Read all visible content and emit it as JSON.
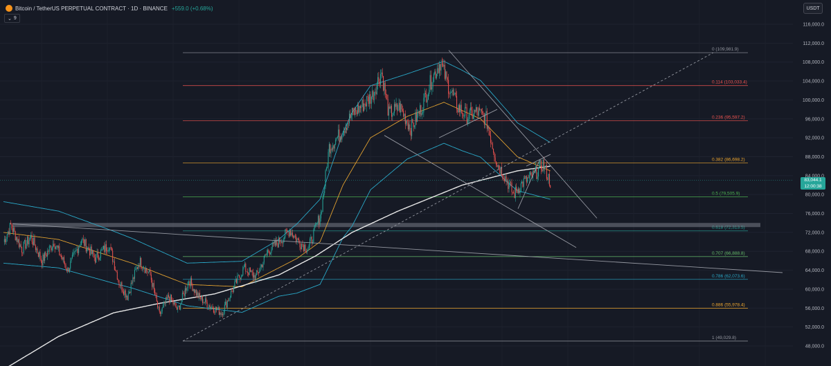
{
  "header": {
    "symbol": "Bitcoin / TetherUS PERPETUAL CONTRACT · 1D · BINANCE",
    "change": "+559.0 (+0.68%)",
    "indicator_count": "9",
    "currency_button": "USDT"
  },
  "last_price": {
    "price": "83,044.1",
    "countdown": "12:00:38",
    "value": 83044.1
  },
  "colors": {
    "background": "#161a25",
    "up": "#26a69a",
    "down": "#ef5350",
    "bollinger": "#2aa9c9",
    "ema": "#e0a030",
    "sma": "#e8e8e8",
    "trendline": "#9598a1"
  },
  "chart_data": {
    "type": "candlestick",
    "y_scale": {
      "min": 45000,
      "max": 118000
    },
    "y_axis_ticks": [
      "116,000.0",
      "112,000.0",
      "108,000.0",
      "104,000.0",
      "100,000.0",
      "96,000.0",
      "92,000.0",
      "88,000.0",
      "84,000.0",
      "80,000.0",
      "76,000.0",
      "72,000.0",
      "68,000.0",
      "64,000.0",
      "60,000.0",
      "56,000.0",
      "52,000.0",
      "48,000.0"
    ],
    "y_axis_values": [
      116000,
      112000,
      108000,
      104000,
      100000,
      96000,
      92000,
      88000,
      84000,
      80000,
      76000,
      72000,
      68000,
      64000,
      60000,
      56000,
      52000,
      48000
    ],
    "fibonacci": [
      {
        "ratio": "0",
        "value": 109981.9,
        "label": "0 (109,981.9)",
        "color": "#9598a1"
      },
      {
        "ratio": "0.114",
        "value": 103033.4,
        "label": "0.114 (103,033.4)",
        "color": "#ef5350"
      },
      {
        "ratio": "0.236",
        "value": 95597.2,
        "label": "0.236 (95,597.2)",
        "color": "#ef5350"
      },
      {
        "ratio": "0.382",
        "value": 86698.2,
        "label": "0.382 (86,698.2)",
        "color": "#f0a830"
      },
      {
        "ratio": "0.5",
        "value": 79505.9,
        "label": "0.5 (79,505.9)",
        "color": "#4caf50"
      },
      {
        "ratio": "0.618",
        "value": 72313.5,
        "label": "0.618 (72,313.5)",
        "color": "#26a69a"
      },
      {
        "ratio": "0.707",
        "value": 66888.8,
        "label": "0.707 (66,888.8)",
        "color": "#66bb6a"
      },
      {
        "ratio": "0.786",
        "value": 62073.6,
        "label": "0.786 (62,073.6)",
        "color": "#2aa9c9"
      },
      {
        "ratio": "0.886",
        "value": 55978.4,
        "label": "0.886 (55,978.4)",
        "color": "#f0a830"
      },
      {
        "ratio": "1",
        "value": 49029.8,
        "label": "1 (49,029.8)",
        "color": "#9598a1"
      }
    ],
    "ohlc_anchors": [
      [
        0,
        70000
      ],
      [
        8,
        73500
      ],
      [
        20,
        68500
      ],
      [
        30,
        71000
      ],
      [
        42,
        66000
      ],
      [
        55,
        70000
      ],
      [
        70,
        64000
      ],
      [
        85,
        70500
      ],
      [
        100,
        66500
      ],
      [
        115,
        69500
      ],
      [
        126,
        61500
      ],
      [
        135,
        58500
      ],
      [
        148,
        66000
      ],
      [
        160,
        63000
      ],
      [
        170,
        54500
      ],
      [
        180,
        58500
      ],
      [
        190,
        55500
      ],
      [
        202,
        62000
      ],
      [
        212,
        58500
      ],
      [
        225,
        56500
      ],
      [
        238,
        55000
      ],
      [
        250,
        60000
      ],
      [
        262,
        64500
      ],
      [
        275,
        62500
      ],
      [
        288,
        68000
      ],
      [
        300,
        70000
      ],
      [
        312,
        72500
      ],
      [
        322,
        70000
      ],
      [
        332,
        68500
      ],
      [
        346,
        76000
      ],
      [
        355,
        90000
      ],
      [
        368,
        93000
      ],
      [
        380,
        97000
      ],
      [
        392,
        99000
      ],
      [
        402,
        101000
      ],
      [
        412,
        106000
      ],
      [
        420,
        97000
      ],
      [
        432,
        98500
      ],
      [
        444,
        94000
      ],
      [
        456,
        98500
      ],
      [
        466,
        104000
      ],
      [
        476,
        108000
      ],
      [
        484,
        103500
      ],
      [
        495,
        98500
      ],
      [
        506,
        96500
      ],
      [
        516,
        97500
      ],
      [
        526,
        96000
      ],
      [
        538,
        86500
      ],
      [
        546,
        84000
      ],
      [
        556,
        80000
      ],
      [
        566,
        82500
      ],
      [
        578,
        84000
      ],
      [
        588,
        86500
      ],
      [
        596,
        82500
      ]
    ],
    "sma_anchors": [
      [
        0,
        43000
      ],
      [
        60,
        50000
      ],
      [
        120,
        55000
      ],
      [
        170,
        57000
      ],
      [
        230,
        59000
      ],
      [
        300,
        63000
      ],
      [
        340,
        67000
      ],
      [
        380,
        72000
      ],
      [
        430,
        76500
      ],
      [
        500,
        82000
      ],
      [
        560,
        85000
      ],
      [
        596,
        86000
      ]
    ],
    "ema_anchors": [
      [
        0,
        72000
      ],
      [
        60,
        70500
      ],
      [
        140,
        65500
      ],
      [
        200,
        61000
      ],
      [
        260,
        60500
      ],
      [
        320,
        66500
      ],
      [
        345,
        70000
      ],
      [
        370,
        82000
      ],
      [
        400,
        92000
      ],
      [
        440,
        96500
      ],
      [
        480,
        99500
      ],
      [
        520,
        96000
      ],
      [
        560,
        88000
      ],
      [
        596,
        85000
      ]
    ],
    "band_anchors": [
      [
        0,
        6500
      ],
      [
        120,
        5500
      ],
      [
        200,
        4500
      ],
      [
        300,
        6000
      ],
      [
        345,
        9000
      ],
      [
        380,
        12000
      ],
      [
        440,
        9000
      ],
      [
        500,
        8500
      ],
      [
        550,
        7500
      ],
      [
        596,
        6000
      ]
    ],
    "drawings": [
      {
        "name": "ascending-dashed-trendline",
        "dashed": true,
        "from": [
          264,
          49029.8
        ],
        "to": [
          1030,
          109981.9
        ]
      },
      {
        "name": "long-descending-trendline",
        "dashed": false,
        "from": [
          18,
          73800
        ],
        "to": [
          1130,
          63500
        ]
      },
      {
        "name": "wedge-upper-trendline",
        "dashed": false,
        "from": [
          648,
          110500
        ],
        "to": [
          862,
          75000
        ]
      },
      {
        "name": "wedge-lower-trendline",
        "dashed": false,
        "from": [
          555,
          92500
        ],
        "to": [
          832,
          68800
        ]
      },
      {
        "name": "mini-wedge-line-a",
        "dashed": false,
        "from": [
          634,
          92000
        ],
        "to": [
          718,
          98000
        ]
      },
      {
        "name": "mini-wedge-line-b",
        "dashed": false,
        "from": [
          748,
          77000
        ],
        "to": [
          780,
          87500
        ]
      },
      {
        "name": "mini-wedge-line-c",
        "dashed": false,
        "from": [
          760,
          86000
        ],
        "to": [
          795,
          88500
        ]
      }
    ],
    "support_zone": {
      "from": 73400,
      "to": 74000
    }
  }
}
